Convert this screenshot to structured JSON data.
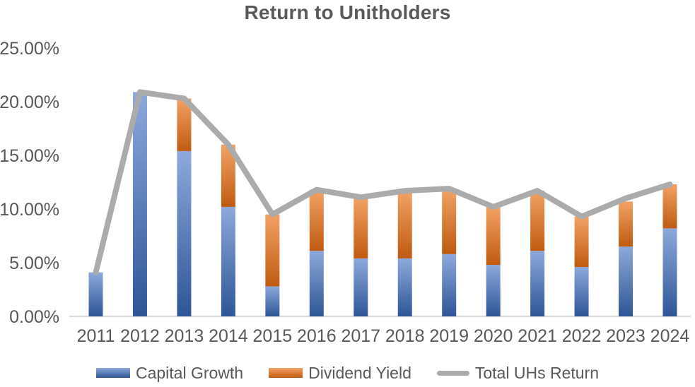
{
  "chart_data": {
    "type": "bar",
    "subtype": "stacked-column-with-line-overlay",
    "title": "Return to Unitholders",
    "units": "percent",
    "categories": [
      "2011",
      "2012",
      "2013",
      "2014",
      "2015",
      "2016",
      "2017",
      "2018",
      "2019",
      "2020",
      "2021",
      "2022",
      "2023",
      "2024"
    ],
    "series": [
      {
        "name": "Capital Growth",
        "kind": "bar",
        "color_top": "#8DA9DC",
        "color_bottom": "#2E5596",
        "values": [
          4.1,
          20.9,
          15.4,
          10.2,
          2.8,
          6.1,
          5.4,
          5.4,
          5.8,
          4.8,
          6.1,
          4.6,
          6.5,
          8.2
        ]
      },
      {
        "name": "Dividend Yield",
        "kind": "bar",
        "color_top": "#F2A266",
        "color_bottom": "#C05B11",
        "values": [
          0,
          0,
          4.9,
          5.8,
          6.7,
          5.7,
          5.7,
          6.3,
          6.1,
          5.4,
          5.6,
          4.7,
          4.2,
          4.1
        ]
      },
      {
        "name": "Total UHs Return",
        "kind": "line",
        "color": "#ABABAB",
        "values": [
          4.1,
          20.9,
          20.3,
          16.0,
          9.5,
          11.8,
          11.1,
          11.7,
          11.9,
          10.2,
          11.7,
          9.3,
          11.0,
          12.3
        ]
      }
    ],
    "ylim": [
      0,
      25
    ],
    "y_tick_step": 5,
    "y_ticks": [
      "0.00%",
      "5.00%",
      "10.00%",
      "15.00%",
      "20.00%",
      "25.00%"
    ],
    "grid": false,
    "legend_position": "bottom",
    "axis_text_color": "#595959",
    "baseline_color": "#D9D9D9"
  }
}
